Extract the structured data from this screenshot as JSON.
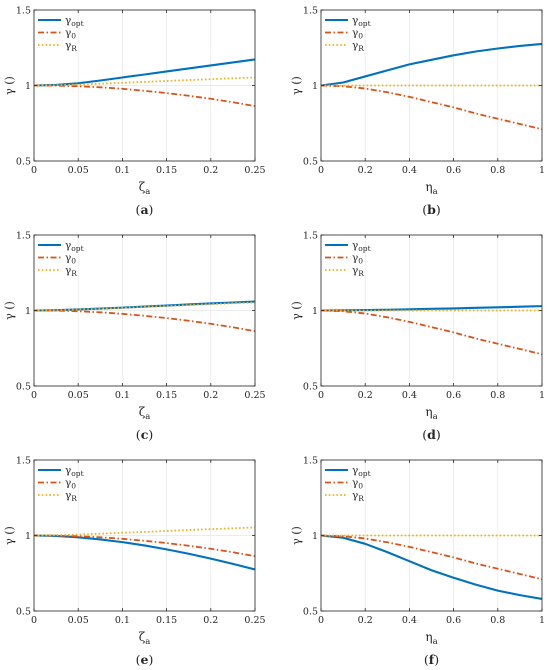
{
  "figure": {
    "panel_labels": [
      "(a)",
      "(b)",
      "(c)",
      "(d)",
      "(e)",
      "(f)"
    ]
  },
  "legend_entries": [
    {
      "base": "γ",
      "sub": "opt",
      "color": "#0072BD",
      "style": "solid"
    },
    {
      "base": "γ",
      "sub": "0",
      "color": "#D95319",
      "style": "dashdot"
    },
    {
      "base": "γ",
      "sub": "R",
      "color": "#EDB120",
      "style": "dotted"
    }
  ],
  "chart_data": [
    {
      "type": "line",
      "panel": "(a)",
      "ylabel": "γ ()",
      "xlabel_base": "ζ",
      "xlabel_sub": "a",
      "xlim": [
        0,
        0.25
      ],
      "ylim": [
        0.5,
        1.5
      ],
      "xticks": [
        0,
        0.05,
        0.1,
        0.15,
        0.2,
        0.25
      ],
      "xticklabels": [
        "0",
        "0.05",
        "0.1",
        "0.15",
        "0.2",
        "0.25"
      ],
      "yticks": [
        0.5,
        1,
        1.5
      ],
      "yticklabels": [
        "0.5",
        "1",
        "1.5"
      ],
      "grid": true,
      "legend_position": "top-left",
      "x": [
        0,
        0.025,
        0.05,
        0.075,
        0.1,
        0.125,
        0.15,
        0.175,
        0.2,
        0.225,
        0.25
      ],
      "series": [
        {
          "name": "γopt",
          "values": [
            1.0,
            1.004,
            1.015,
            1.033,
            1.053,
            1.073,
            1.093,
            1.113,
            1.133,
            1.153,
            1.173
          ]
        },
        {
          "name": "γ0",
          "values": [
            1.0,
            0.999,
            0.995,
            0.988,
            0.978,
            0.965,
            0.95,
            0.932,
            0.912,
            0.889,
            0.863
          ]
        },
        {
          "name": "γR",
          "values": [
            1.0,
            1.002,
            1.006,
            1.012,
            1.018,
            1.024,
            1.03,
            1.036,
            1.042,
            1.048,
            1.053
          ]
        }
      ]
    },
    {
      "type": "line",
      "panel": "(b)",
      "ylabel": "γ ()",
      "xlabel_base": "η",
      "xlabel_sub": "a",
      "xlim": [
        0,
        1
      ],
      "ylim": [
        0.5,
        1.5
      ],
      "xticks": [
        0,
        0.2,
        0.4,
        0.6,
        0.8,
        1
      ],
      "xticklabels": [
        "0",
        "0.2",
        "0.4",
        "0.6",
        "0.8",
        "1"
      ],
      "yticks": [
        0.5,
        1,
        1.5
      ],
      "yticklabels": [
        "0.5",
        "1",
        "1.5"
      ],
      "grid": true,
      "legend_position": "top-left",
      "x": [
        0,
        0.1,
        0.2,
        0.3,
        0.4,
        0.5,
        0.6,
        0.7,
        0.8,
        0.9,
        1.0
      ],
      "series": [
        {
          "name": "γopt",
          "values": [
            1.0,
            1.02,
            1.06,
            1.1,
            1.14,
            1.17,
            1.2,
            1.225,
            1.245,
            1.262,
            1.275
          ]
        },
        {
          "name": "γ0",
          "values": [
            1.0,
            0.995,
            0.98,
            0.955,
            0.925,
            0.89,
            0.855,
            0.815,
            0.78,
            0.745,
            0.71
          ]
        },
        {
          "name": "γR",
          "values": [
            1.0,
            1.0,
            1.0,
            1.0,
            1.0,
            1.0,
            1.0,
            1.0,
            1.0,
            1.0,
            1.0
          ]
        }
      ]
    },
    {
      "type": "line",
      "panel": "(c)",
      "ylabel": "γ ()",
      "xlabel_base": "ζ",
      "xlabel_sub": "a",
      "xlim": [
        0,
        0.25
      ],
      "ylim": [
        0.5,
        1.5
      ],
      "xticks": [
        0,
        0.05,
        0.1,
        0.15,
        0.2,
        0.25
      ],
      "xticklabels": [
        "0",
        "0.05",
        "0.1",
        "0.15",
        "0.2",
        "0.25"
      ],
      "yticks": [
        0.5,
        1,
        1.5
      ],
      "yticklabels": [
        "0.5",
        "1",
        "1.5"
      ],
      "grid": true,
      "legend_position": "top-left",
      "x": [
        0,
        0.025,
        0.05,
        0.075,
        0.1,
        0.125,
        0.15,
        0.175,
        0.2,
        0.225,
        0.25
      ],
      "series": [
        {
          "name": "γopt",
          "values": [
            1.0,
            1.002,
            1.007,
            1.013,
            1.019,
            1.026,
            1.033,
            1.04,
            1.047,
            1.053,
            1.059
          ]
        },
        {
          "name": "γ0",
          "values": [
            1.0,
            0.999,
            0.995,
            0.988,
            0.978,
            0.965,
            0.95,
            0.932,
            0.912,
            0.889,
            0.863
          ]
        },
        {
          "name": "γR",
          "values": [
            1.0,
            1.002,
            1.006,
            1.012,
            1.018,
            1.024,
            1.03,
            1.036,
            1.042,
            1.048,
            1.053
          ]
        }
      ]
    },
    {
      "type": "line",
      "panel": "(d)",
      "ylabel": "γ ()",
      "xlabel_base": "η",
      "xlabel_sub": "a",
      "xlim": [
        0,
        1
      ],
      "ylim": [
        0.5,
        1.5
      ],
      "xticks": [
        0,
        0.2,
        0.4,
        0.6,
        0.8,
        1
      ],
      "xticklabels": [
        "0",
        "0.2",
        "0.4",
        "0.6",
        "0.8",
        "1"
      ],
      "yticks": [
        0.5,
        1,
        1.5
      ],
      "yticklabels": [
        "0.5",
        "1",
        "1.5"
      ],
      "grid": true,
      "legend_position": "top-left",
      "x": [
        0,
        0.1,
        0.2,
        0.3,
        0.4,
        0.5,
        0.6,
        0.7,
        0.8,
        0.9,
        1.0
      ],
      "series": [
        {
          "name": "γopt",
          "values": [
            1.0,
            1.001,
            1.003,
            1.005,
            1.008,
            1.011,
            1.014,
            1.018,
            1.021,
            1.025,
            1.029
          ]
        },
        {
          "name": "γ0",
          "values": [
            1.0,
            0.995,
            0.98,
            0.955,
            0.925,
            0.89,
            0.855,
            0.815,
            0.78,
            0.745,
            0.71
          ]
        },
        {
          "name": "γR",
          "values": [
            1.0,
            1.0,
            1.0,
            1.0,
            1.0,
            1.0,
            1.0,
            1.0,
            1.0,
            1.0,
            1.0
          ]
        }
      ]
    },
    {
      "type": "line",
      "panel": "(e)",
      "ylabel": "γ ()",
      "xlabel_base": "ζ",
      "xlabel_sub": "a",
      "xlim": [
        0,
        0.25
      ],
      "ylim": [
        0.5,
        1.5
      ],
      "xticks": [
        0,
        0.05,
        0.1,
        0.15,
        0.2,
        0.25
      ],
      "xticklabels": [
        "0",
        "0.05",
        "0.1",
        "0.15",
        "0.2",
        "0.25"
      ],
      "yticks": [
        0.5,
        1,
        1.5
      ],
      "yticklabels": [
        "0.5",
        "1",
        "1.5"
      ],
      "grid": true,
      "legend_position": "top-left",
      "x": [
        0,
        0.025,
        0.05,
        0.075,
        0.1,
        0.125,
        0.15,
        0.175,
        0.2,
        0.225,
        0.25
      ],
      "series": [
        {
          "name": "γopt",
          "values": [
            1.0,
            0.997,
            0.988,
            0.974,
            0.956,
            0.934,
            0.908,
            0.879,
            0.847,
            0.812,
            0.775
          ]
        },
        {
          "name": "γ0",
          "values": [
            1.0,
            0.999,
            0.995,
            0.988,
            0.978,
            0.965,
            0.95,
            0.932,
            0.912,
            0.889,
            0.863
          ]
        },
        {
          "name": "γR",
          "values": [
            1.0,
            1.002,
            1.006,
            1.012,
            1.018,
            1.024,
            1.03,
            1.036,
            1.042,
            1.048,
            1.053
          ]
        }
      ]
    },
    {
      "type": "line",
      "panel": "(f)",
      "ylabel": "γ ()",
      "xlabel_base": "η",
      "xlabel_sub": "a",
      "xlim": [
        0,
        1
      ],
      "ylim": [
        0.5,
        1.5
      ],
      "xticks": [
        0,
        0.2,
        0.4,
        0.6,
        0.8,
        1
      ],
      "xticklabels": [
        "0",
        "0.2",
        "0.4",
        "0.6",
        "0.8",
        "1"
      ],
      "yticks": [
        0.5,
        1,
        1.5
      ],
      "yticklabels": [
        "0.5",
        "1",
        "1.5"
      ],
      "grid": true,
      "legend_position": "top-left",
      "x": [
        0,
        0.1,
        0.2,
        0.3,
        0.4,
        0.5,
        0.6,
        0.7,
        0.8,
        0.9,
        1.0
      ],
      "series": [
        {
          "name": "γopt",
          "values": [
            1.0,
            0.985,
            0.945,
            0.89,
            0.83,
            0.77,
            0.72,
            0.675,
            0.635,
            0.605,
            0.58
          ]
        },
        {
          "name": "γ0",
          "values": [
            1.0,
            0.995,
            0.98,
            0.955,
            0.925,
            0.89,
            0.855,
            0.815,
            0.78,
            0.745,
            0.71
          ]
        },
        {
          "name": "γR",
          "values": [
            1.0,
            1.0,
            1.0,
            1.0,
            1.0,
            1.0,
            1.0,
            1.0,
            1.0,
            1.0,
            1.0
          ]
        }
      ]
    }
  ]
}
